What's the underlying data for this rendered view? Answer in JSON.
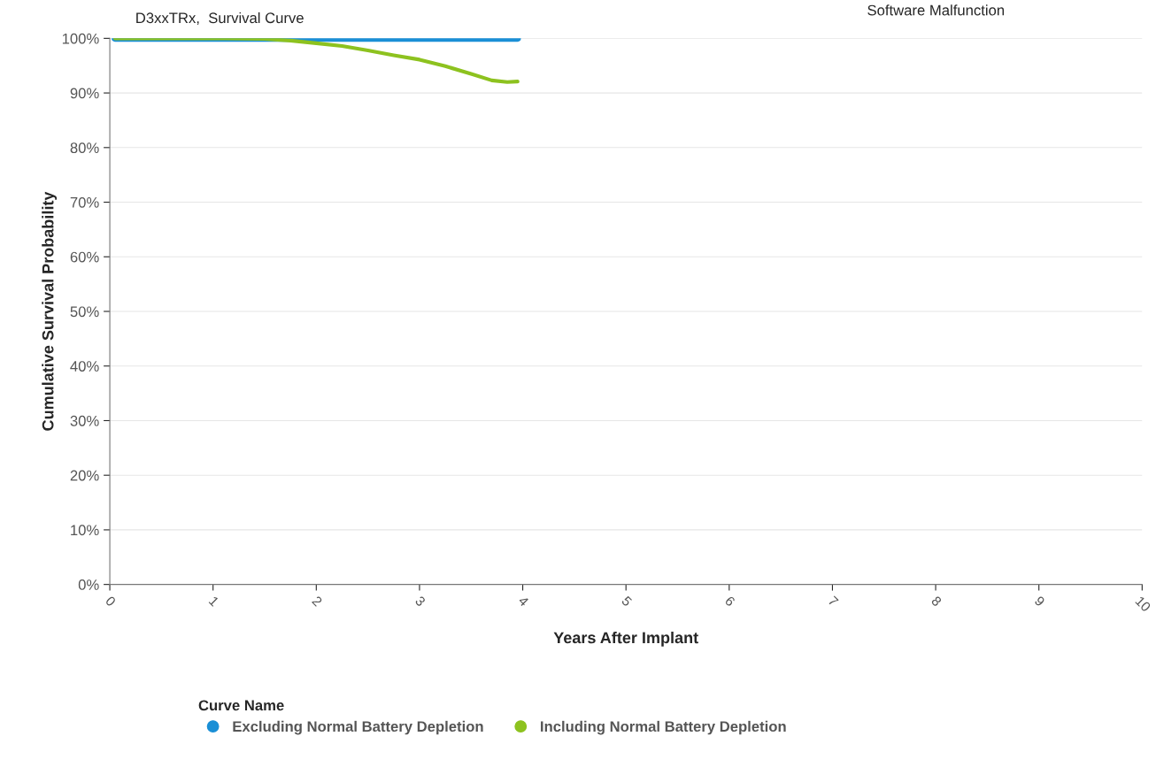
{
  "chart_data": {
    "type": "line",
    "title": "D3xxTRx,  Survival Curve",
    "subtitle": "Software Malfunction",
    "xlabel": "Years After Implant",
    "ylabel": "Cumulative Survival Probability",
    "legend_title": "Curve Name",
    "series": [
      {
        "name": "Excluding Normal Battery Depletion",
        "color": "#1a8fd6",
        "x": [
          0.05,
          1.0,
          2.0,
          3.0,
          3.95
        ],
        "values": [
          100,
          100,
          100,
          100,
          100
        ]
      },
      {
        "name": "Including Normal Battery Depletion",
        "color": "#8dc21f",
        "x": [
          0.05,
          0.5,
          1.0,
          1.5,
          1.75,
          2.0,
          2.25,
          2.5,
          2.75,
          3.0,
          3.25,
          3.5,
          3.7,
          3.85,
          3.95
        ],
        "values": [
          100,
          100,
          100,
          99.9,
          99.6,
          99.1,
          98.6,
          97.8,
          96.9,
          96.1,
          94.9,
          93.5,
          92.3,
          92.0,
          92.1
        ]
      }
    ],
    "xlim": [
      0,
      10
    ],
    "xticks": [
      0,
      1,
      2,
      3,
      4,
      5,
      6,
      7,
      8,
      9,
      10
    ],
    "ylim": [
      0,
      100
    ],
    "yticks": [
      {
        "value": 0,
        "label": "0%"
      },
      {
        "value": 10,
        "label": "10%"
      },
      {
        "value": 20,
        "label": "20%"
      },
      {
        "value": 30,
        "label": "30%"
      },
      {
        "value": 40,
        "label": "40%"
      },
      {
        "value": 50,
        "label": "50%"
      },
      {
        "value": 60,
        "label": "60%"
      },
      {
        "value": 70,
        "label": "70%"
      },
      {
        "value": 80,
        "label": "80%"
      },
      {
        "value": 90,
        "label": "90%"
      },
      {
        "value": 100,
        "label": "100%"
      }
    ],
    "grid": "y",
    "legend": "bottom",
    "marker": "none",
    "line_style": "solid"
  }
}
